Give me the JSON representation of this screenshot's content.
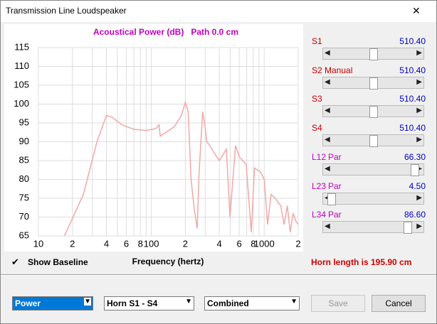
{
  "window": {
    "title": "Transmission Line Loudspeaker",
    "close": "✕"
  },
  "chart_data": {
    "type": "line",
    "title": "Acoustical Power (dB)   Path 0.0 cm",
    "x_label": "Frequency (hertz)",
    "x_scale": "log",
    "xlim": [
      10,
      2000
    ],
    "ylim": [
      65,
      115
    ],
    "xticks": [
      10,
      {
        "value": 20,
        "label": "2"
      },
      {
        "value": 40,
        "label": "4"
      },
      {
        "value": 60,
        "label": "6"
      },
      {
        "value": 80,
        "label": "8"
      },
      100,
      {
        "value": 200,
        "label": "2"
      },
      {
        "value": 400,
        "label": "4"
      },
      {
        "value": 600,
        "label": "6"
      },
      {
        "value": 800,
        "label": "8"
      },
      1000,
      {
        "value": 2000,
        "label": "2"
      }
    ],
    "xminor": [
      30,
      50,
      70,
      90,
      300,
      500,
      700,
      900
    ],
    "yticks": [
      65,
      70,
      75,
      80,
      85,
      90,
      95,
      100,
      105,
      110,
      115
    ],
    "grid": true,
    "series": [
      {
        "color": "#f2a8a8",
        "x": [
          17,
          25,
          33,
          40,
          45,
          55,
          70,
          90,
          110,
          117,
          120,
          135,
          160,
          185,
          200,
          212,
          225,
          240,
          255,
          265,
          285,
          299,
          310,
          330,
          360,
          400,
          462,
          497,
          557,
          600,
          692,
          768,
          820,
          927,
          1000,
          1070,
          1150,
          1250,
          1400,
          1500,
          1600,
          1700,
          1800,
          1900,
          2000
        ],
        "values": [
          65,
          76,
          90,
          97,
          96.5,
          94.5,
          93.3,
          93,
          93.5,
          94.5,
          91.5,
          92.5,
          94,
          97,
          100.5,
          98,
          80,
          72,
          67,
          82,
          98,
          94,
          90,
          89,
          87,
          85,
          88,
          70,
          89,
          86,
          84,
          66,
          83,
          82,
          80,
          68,
          76,
          75,
          73,
          68,
          73,
          66,
          71,
          69,
          68
        ]
      }
    ]
  },
  "sliders": [
    {
      "name": "S1",
      "value": "510.40"
    },
    {
      "name": "S2",
      "mode": "Manual",
      "value": "510.40"
    },
    {
      "name": "S3",
      "value": "510.40"
    },
    {
      "name": "S4",
      "value": "510.40"
    },
    {
      "name": "L12",
      "mode": "Par",
      "value": "66.30"
    },
    {
      "name": "L23",
      "mode": "Par",
      "value": "4.50"
    },
    {
      "name": "L34",
      "mode": "Par",
      "value": "86.60"
    }
  ],
  "checkbox": {
    "label": "Show Baseline",
    "mark": "✔"
  },
  "horn_length": "Horn length is 195.90 cm",
  "dropdowns": [
    "Power",
    "Horn S1 - S4",
    "Combined"
  ],
  "buttons": [
    "Save",
    "Cancel"
  ]
}
